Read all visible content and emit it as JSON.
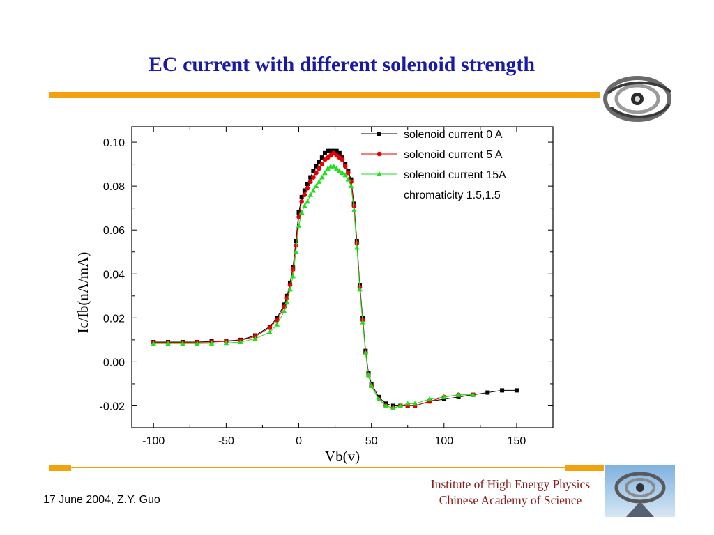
{
  "slide": {
    "title": "EC current with different solenoid strength",
    "footer_date": "17 June 2004,  Z.Y. Guo",
    "institute_line1": "Institute of High Energy Physics",
    "institute_line2": "Chinese Academy of Science",
    "accent_color": "#f2a20c",
    "title_color": "#1a1aa8"
  },
  "chart_data": {
    "type": "line",
    "xlabel": "Vb(v)",
    "ylabel": "Ic/Ib(nA/mA)",
    "xlim": [
      -115,
      175
    ],
    "ylim": [
      -0.03,
      0.107
    ],
    "xticks": [
      -100,
      -50,
      0,
      50,
      100,
      150
    ],
    "yticks": [
      -0.02,
      0.0,
      0.02,
      0.04,
      0.06,
      0.08,
      0.1
    ],
    "xtick_labels": [
      "-100",
      "-50",
      "0",
      "50",
      "100",
      "150"
    ],
    "ytick_labels": [
      "-0.02",
      "0.00",
      "0.02",
      "0.04",
      "0.06",
      "0.08",
      "0.10"
    ],
    "legend_position": "top-right",
    "legend_note": "chromaticity  1.5,1.5",
    "series": [
      {
        "name": "solenoid current 0 A",
        "color": "#000000",
        "marker": "square",
        "x": [
          -100,
          -90,
          -80,
          -70,
          -60,
          -50,
          -40,
          -30,
          -20,
          -15,
          -10,
          -8,
          -6,
          -4,
          -2,
          0,
          2,
          4,
          6,
          8,
          10,
          12,
          14,
          16,
          18,
          20,
          22,
          24,
          26,
          28,
          30,
          32,
          34,
          36,
          38,
          40,
          42,
          44,
          46,
          48,
          50,
          55,
          60,
          65,
          70,
          75,
          80,
          90,
          100,
          110,
          120,
          130,
          140,
          150
        ],
        "y": [
          0.009,
          0.009,
          0.009,
          0.009,
          0.0093,
          0.0095,
          0.01,
          0.012,
          0.016,
          0.02,
          0.026,
          0.03,
          0.036,
          0.043,
          0.055,
          0.068,
          0.075,
          0.078,
          0.081,
          0.084,
          0.087,
          0.089,
          0.091,
          0.093,
          0.095,
          0.096,
          0.096,
          0.096,
          0.096,
          0.095,
          0.093,
          0.09,
          0.087,
          0.083,
          0.072,
          0.055,
          0.035,
          0.02,
          0.005,
          -0.005,
          -0.01,
          -0.016,
          -0.019,
          -0.02,
          -0.02,
          -0.02,
          -0.02,
          -0.018,
          -0.017,
          -0.016,
          -0.015,
          -0.014,
          -0.013,
          -0.013
        ]
      },
      {
        "name": "solenoid current 5 A",
        "color": "#e60000",
        "marker": "circle",
        "x": [
          -100,
          -90,
          -80,
          -70,
          -60,
          -50,
          -40,
          -30,
          -20,
          -15,
          -10,
          -8,
          -6,
          -4,
          -2,
          0,
          2,
          4,
          6,
          8,
          10,
          12,
          14,
          16,
          18,
          20,
          22,
          24,
          26,
          28,
          30,
          32,
          34,
          36,
          38,
          40,
          42,
          44,
          46,
          48,
          50,
          55,
          60,
          65,
          70,
          75,
          80,
          90,
          100,
          110,
          120
        ],
        "y": [
          0.0088,
          0.0088,
          0.0088,
          0.0089,
          0.009,
          0.0093,
          0.0098,
          0.0115,
          0.0155,
          0.019,
          0.025,
          0.029,
          0.035,
          0.042,
          0.053,
          0.066,
          0.073,
          0.076,
          0.079,
          0.082,
          0.084,
          0.086,
          0.088,
          0.09,
          0.092,
          0.093,
          0.094,
          0.095,
          0.094,
          0.093,
          0.092,
          0.089,
          0.086,
          0.082,
          0.071,
          0.054,
          0.034,
          0.019,
          0.004,
          -0.006,
          -0.011,
          -0.017,
          -0.02,
          -0.021,
          -0.02,
          -0.02,
          -0.02,
          -0.018,
          -0.016,
          -0.015,
          -0.015
        ]
      },
      {
        "name": "solenoid current 15A",
        "color": "#1fe01f",
        "marker": "triangle",
        "x": [
          -100,
          -90,
          -80,
          -70,
          -60,
          -50,
          -40,
          -30,
          -20,
          -15,
          -10,
          -8,
          -6,
          -4,
          -2,
          0,
          2,
          4,
          6,
          8,
          10,
          12,
          14,
          16,
          18,
          20,
          22,
          24,
          26,
          28,
          30,
          32,
          34,
          36,
          38,
          40,
          42,
          44,
          46,
          48,
          50,
          55,
          60,
          65,
          70,
          75,
          80,
          90,
          100,
          110,
          120
        ],
        "y": [
          0.0083,
          0.0083,
          0.0083,
          0.0083,
          0.0084,
          0.0086,
          0.009,
          0.0105,
          0.0135,
          0.017,
          0.023,
          0.027,
          0.033,
          0.039,
          0.05,
          0.062,
          0.068,
          0.071,
          0.073,
          0.076,
          0.078,
          0.08,
          0.082,
          0.084,
          0.086,
          0.088,
          0.089,
          0.089,
          0.088,
          0.087,
          0.086,
          0.085,
          0.083,
          0.08,
          0.069,
          0.052,
          0.033,
          0.018,
          0.004,
          -0.006,
          -0.011,
          -0.017,
          -0.02,
          -0.021,
          -0.02,
          -0.019,
          -0.019,
          -0.017,
          -0.016,
          -0.015,
          -0.015
        ]
      }
    ]
  }
}
